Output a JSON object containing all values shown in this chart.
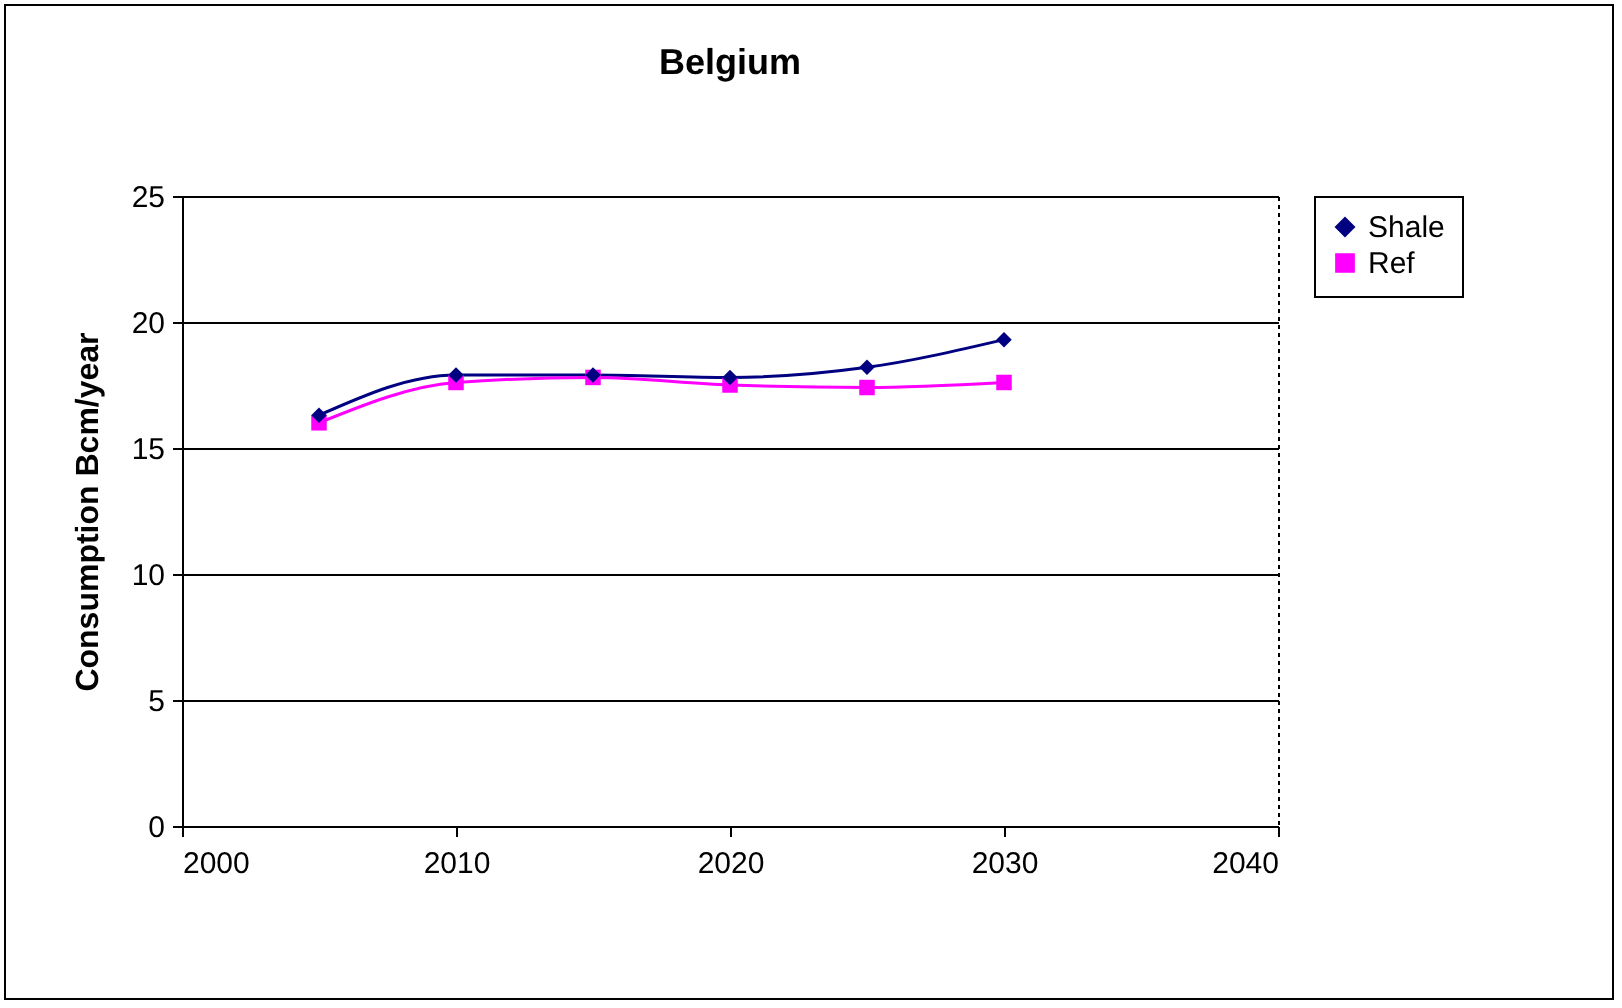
{
  "chart_data": {
    "type": "line",
    "title": "Belgium",
    "ylabel": "Consumption Bcm/year",
    "x": [
      2005,
      2010,
      2015,
      2020,
      2025,
      2030
    ],
    "series": [
      {
        "name": "Shale",
        "color": "#000080",
        "marker": "diamond",
        "values": [
          16.3,
          17.9,
          17.9,
          17.8,
          18.2,
          19.3
        ]
      },
      {
        "name": "Ref",
        "color": "#ff00ff",
        "marker": "square",
        "values": [
          16.0,
          17.6,
          17.8,
          17.5,
          17.4,
          17.6
        ]
      }
    ],
    "xlim": [
      2000,
      2040
    ],
    "xticks": [
      2000,
      2010,
      2020,
      2030,
      2040
    ],
    "ylim": [
      0,
      25
    ],
    "yticks": [
      0,
      5,
      10,
      15,
      20,
      25
    ],
    "grid": "y",
    "legend": "right",
    "line_style": "solid"
  }
}
